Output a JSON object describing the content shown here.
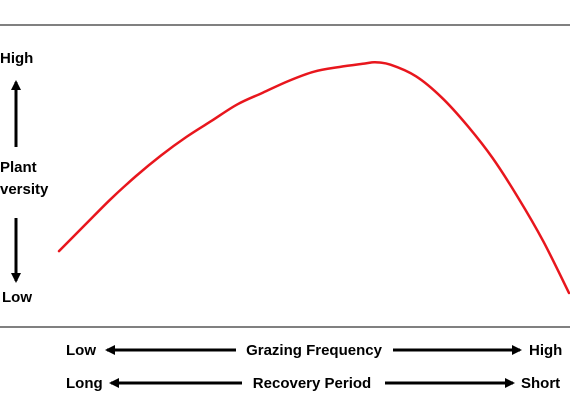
{
  "chart_data": {
    "type": "line",
    "title": "",
    "y_axis": {
      "high_label": "High",
      "low_label": "Low",
      "title_line1": "Plant",
      "title_line2": "versity"
    },
    "x_axes": [
      {
        "left_label": "Low",
        "center_label": "Grazing Frequency",
        "right_label": "High"
      },
      {
        "left_label": "Long",
        "center_label": "Recovery Period",
        "right_label": "Short"
      }
    ],
    "ylim": [
      0,
      1
    ],
    "xlim": [
      0,
      1
    ],
    "series": [
      {
        "color": "#e8161d",
        "x": [
          0.0,
          0.05,
          0.1,
          0.15,
          0.2,
          0.25,
          0.3,
          0.35,
          0.4,
          0.45,
          0.5,
          0.55,
          0.6,
          0.62,
          0.65,
          0.7,
          0.75,
          0.8,
          0.85,
          0.9,
          0.95,
          1.0
        ],
        "y": [
          0.18,
          0.29,
          0.4,
          0.5,
          0.59,
          0.67,
          0.74,
          0.81,
          0.86,
          0.91,
          0.95,
          0.97,
          0.985,
          0.99,
          0.98,
          0.93,
          0.84,
          0.72,
          0.58,
          0.41,
          0.22,
          0.0
        ]
      }
    ],
    "grid": false,
    "legend": false
  }
}
